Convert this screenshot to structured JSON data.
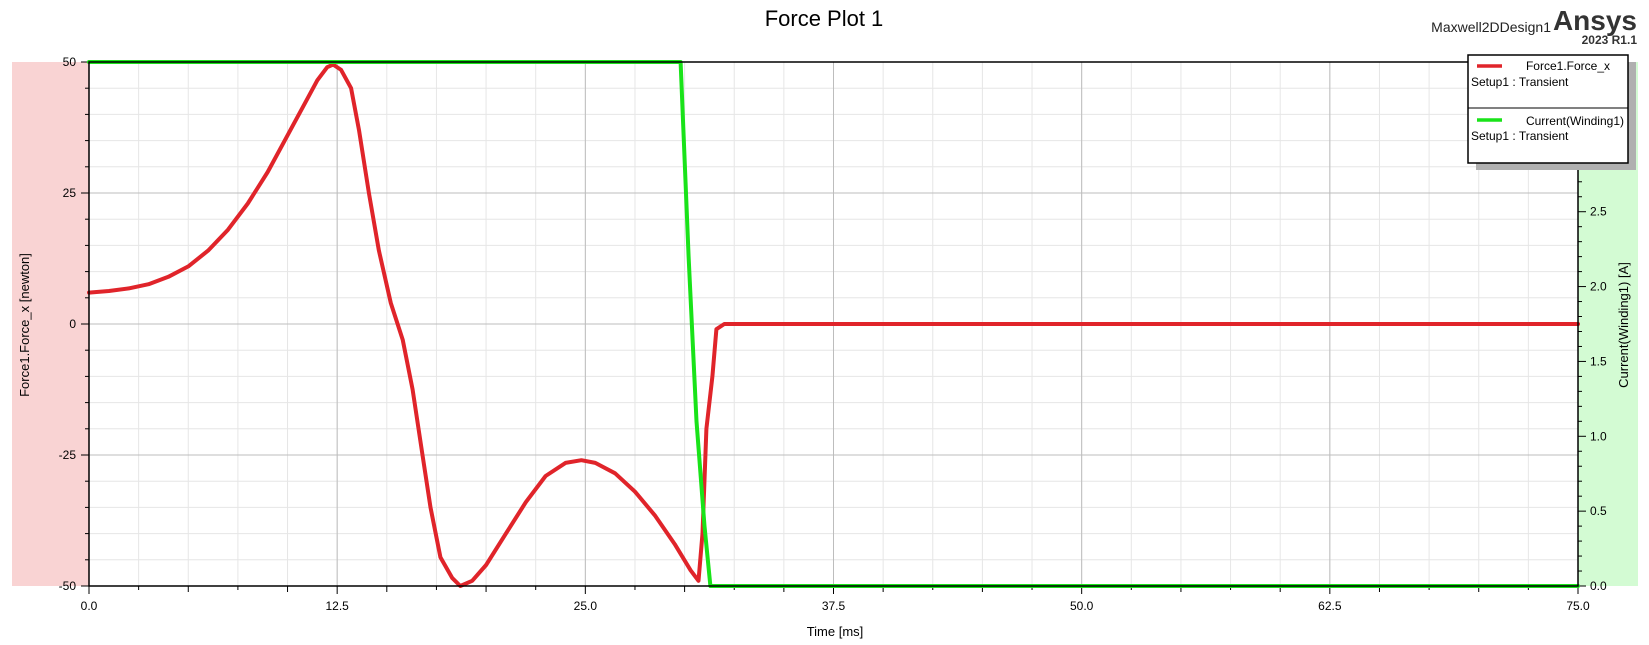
{
  "header": {
    "design_name": "Maxwell2DDesign1",
    "brand": "Ansys",
    "version": "2023 R1.1"
  },
  "chart_data": {
    "type": "line",
    "title": "Force Plot 1",
    "xlabel": "Time [ms]",
    "ylabel_left": "Force1.Force_x [newton]",
    "ylabel_right": "Current(Winding1) [A]",
    "xlim": [
      0,
      75
    ],
    "ylim_left": [
      -50,
      50
    ],
    "ylim_right": [
      0,
      3.5
    ],
    "x_ticks": [
      "0.0",
      "12.5",
      "25.0",
      "37.5",
      "50.0",
      "62.5",
      "75.0"
    ],
    "y_left_ticks": [
      "50",
      "25",
      "0",
      "-25",
      "-50"
    ],
    "y_right_ticks": [
      "0.0",
      "0.5",
      "1.0",
      "1.5",
      "2.0",
      "2.5"
    ],
    "grid": true,
    "legend_placement": "top-right",
    "colors": {
      "force": "#e0242a",
      "current": "#19e319",
      "left_band": "#f9d3d3",
      "right_band": "#d3fbd3"
    },
    "series": [
      {
        "name": "Force1.Force_x",
        "setup": "Setup1 : Transient",
        "axis": "left",
        "color": "#e0242a",
        "points": [
          [
            0.0,
            6.0
          ],
          [
            1.0,
            6.3
          ],
          [
            2.0,
            6.8
          ],
          [
            3.0,
            7.6
          ],
          [
            4.0,
            9.0
          ],
          [
            5.0,
            11.0
          ],
          [
            6.0,
            14.0
          ],
          [
            7.0,
            18.0
          ],
          [
            8.0,
            23.0
          ],
          [
            9.0,
            29.0
          ],
          [
            10.0,
            36.0
          ],
          [
            11.0,
            43.0
          ],
          [
            11.5,
            46.5
          ],
          [
            12.0,
            49.0
          ],
          [
            12.3,
            49.5
          ],
          [
            12.7,
            48.5
          ],
          [
            13.2,
            45.0
          ],
          [
            13.6,
            37.0
          ],
          [
            14.1,
            25.0
          ],
          [
            14.6,
            14.0
          ],
          [
            15.2,
            4.0
          ],
          [
            15.8,
            -3.0
          ],
          [
            16.3,
            -12.5
          ],
          [
            16.8,
            -25.0
          ],
          [
            17.2,
            -35.0
          ],
          [
            17.7,
            -44.5
          ],
          [
            18.3,
            -48.5
          ],
          [
            18.7,
            -50.0
          ],
          [
            19.3,
            -49.0
          ],
          [
            20.0,
            -46.0
          ],
          [
            21.0,
            -40.0
          ],
          [
            22.0,
            -34.0
          ],
          [
            23.0,
            -29.0
          ],
          [
            24.0,
            -26.5
          ],
          [
            24.8,
            -26.0
          ],
          [
            25.5,
            -26.5
          ],
          [
            26.5,
            -28.5
          ],
          [
            27.5,
            -32.0
          ],
          [
            28.5,
            -36.5
          ],
          [
            29.5,
            -42.0
          ],
          [
            30.3,
            -47.0
          ],
          [
            30.7,
            -49.0
          ],
          [
            30.9,
            -40.0
          ],
          [
            31.1,
            -20.0
          ],
          [
            31.4,
            -10.0
          ],
          [
            31.6,
            -1.0
          ],
          [
            32.0,
            0.0
          ],
          [
            75.0,
            0.0
          ]
        ]
      },
      {
        "name": "Current(Winding1)",
        "setup": "Setup1 : Transient",
        "axis": "right",
        "color": "#19e319",
        "points": [
          [
            0.0,
            3.5
          ],
          [
            29.8,
            3.5
          ],
          [
            30.2,
            2.2
          ],
          [
            30.6,
            1.1
          ],
          [
            31.0,
            0.4
          ],
          [
            31.3,
            0.0
          ],
          [
            75.0,
            0.0
          ]
        ]
      }
    ]
  }
}
